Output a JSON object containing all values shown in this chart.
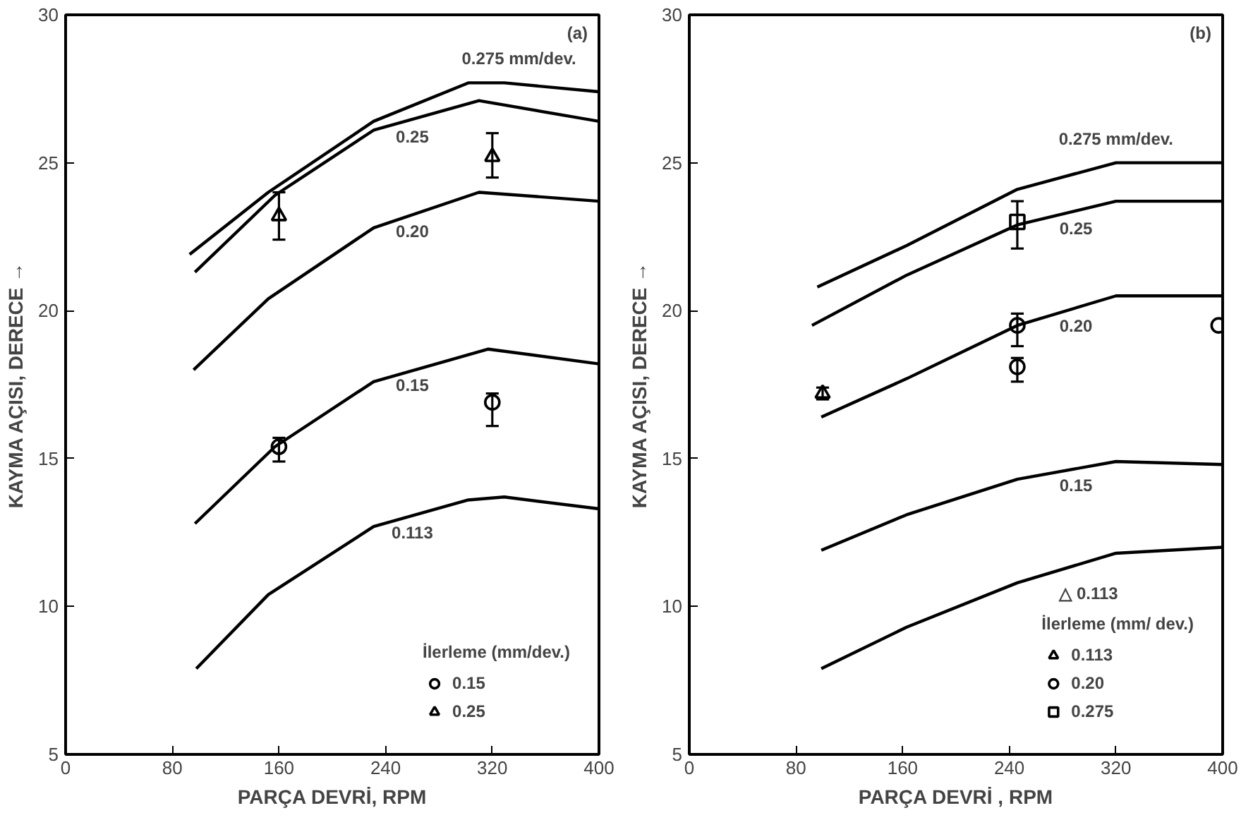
{
  "chart_data": [
    {
      "type": "line",
      "title": "(a)",
      "xlabel": "PARÇA DEVRİ, RPM",
      "ylabel": "KAYMA AÇISI, DERECE →",
      "legend_title": "İlerleme (mm/dev.)",
      "legend": "bottom right",
      "grid": false,
      "line_style": "solid",
      "xlim": [
        0,
        400
      ],
      "xticks": [
        0,
        80,
        160,
        240,
        320,
        400
      ],
      "ylim": [
        5,
        30
      ],
      "yticks": [
        5,
        10,
        15,
        20,
        25,
        30
      ],
      "annotations": [
        {
          "text": "0.275 mm/dev.",
          "x": 340,
          "y": 27.7
        },
        {
          "text": "0.25",
          "x": 260,
          "y": 26.5
        },
        {
          "text": "0.20",
          "x": 260,
          "y": 23.3
        },
        {
          "text": "0.15",
          "x": 260,
          "y": 18.1
        },
        {
          "text": "0.113",
          "x": 260,
          "y": 13.1
        }
      ],
      "series": [
        {
          "color": "#000000",
          "x": [
            93,
            152,
            231,
            302,
            329,
            400
          ],
          "values": [
            21.9,
            24.0,
            26.4,
            27.7,
            27.7,
            27.4
          ]
        },
        {
          "color": "#000000",
          "x": [
            97,
            157,
            231,
            310,
            400
          ],
          "values": [
            21.3,
            23.9,
            26.1,
            27.1,
            26.4
          ]
        },
        {
          "color": "#000000",
          "x": [
            96,
            152,
            231,
            310,
            400
          ],
          "values": [
            18.0,
            20.4,
            22.8,
            24.0,
            23.7
          ]
        },
        {
          "color": "#000000",
          "x": [
            97,
            157,
            231,
            317,
            400
          ],
          "values": [
            12.8,
            15.4,
            17.6,
            18.7,
            18.2
          ]
        },
        {
          "color": "#000000",
          "x": [
            98,
            152,
            231,
            302,
            329,
            400
          ],
          "values": [
            7.9,
            10.4,
            12.7,
            13.6,
            13.7,
            13.3
          ]
        },
        {
          "name": "0.15",
          "type": "scatter",
          "marker": "circle",
          "color": "#000000",
          "x": [
            160,
            320
          ],
          "values": [
            15.4,
            16.9
          ],
          "errors": [
            [
              14.9,
              15.7
            ],
            [
              16.1,
              17.2
            ]
          ]
        },
        {
          "name": "0.25",
          "type": "scatter",
          "marker": "triangle",
          "color": "#000000",
          "x": [
            160,
            320
          ],
          "values": [
            23.2,
            25.2
          ],
          "errors": [
            [
              22.4,
              24.0
            ],
            [
              24.5,
              26.0
            ]
          ]
        }
      ]
    },
    {
      "type": "line",
      "title": "(b)",
      "xlabel": "PARÇA DEVRİ , RPM",
      "ylabel": "KAYMA AÇISI, DERECE →",
      "legend_title": "İlerleme (mm/ dev.)",
      "legend": "bottom right",
      "grid": false,
      "line_style": "solid",
      "xlim": [
        0,
        400
      ],
      "xticks": [
        0,
        80,
        160,
        240,
        320,
        400
      ],
      "ylim": [
        5,
        30
      ],
      "yticks": [
        5,
        10,
        15,
        20,
        25,
        30
      ],
      "annotations": [
        {
          "text": "0.275 mm/dev.",
          "x": 320,
          "y": 25.0
        },
        {
          "text": "0.25",
          "x": 290,
          "y": 23.4
        },
        {
          "text": "0.20",
          "x": 290,
          "y": 20.1
        },
        {
          "text": "0.15",
          "x": 290,
          "y": 14.7
        },
        "△ 0.113"
      ],
      "series": [
        {
          "color": "#000000",
          "x": [
            96,
            163,
            246,
            320,
            400
          ],
          "values": [
            20.8,
            22.2,
            24.1,
            25.0,
            25.0
          ]
        },
        {
          "color": "#000000",
          "x": [
            92,
            163,
            246,
            320,
            400
          ],
          "values": [
            19.5,
            21.2,
            22.9,
            23.7,
            23.7
          ]
        },
        {
          "color": "#000000",
          "x": [
            99,
            163,
            246,
            320,
            400
          ],
          "values": [
            16.4,
            17.7,
            19.5,
            20.5,
            20.5
          ]
        },
        {
          "color": "#000000",
          "x": [
            99,
            163,
            246,
            320,
            400
          ],
          "values": [
            11.9,
            13.1,
            14.3,
            14.9,
            14.8
          ]
        },
        {
          "color": "#000000",
          "x": [
            99,
            163,
            246,
            320,
            400
          ],
          "values": [
            7.9,
            9.3,
            10.8,
            11.8,
            12.0
          ]
        },
        {
          "name": "0.113",
          "type": "scatter",
          "marker": "triangle",
          "color": "#000000",
          "x": [
            100
          ],
          "values": [
            17.2
          ],
          "errors": [
            [
              17.0,
              17.4
            ]
          ]
        },
        {
          "name": "0.20",
          "type": "scatter",
          "marker": "circle",
          "color": "#000000",
          "x": [
            246,
            246,
            397
          ],
          "values": [
            19.5,
            18.1,
            19.5
          ],
          "errors": [
            [
              18.8,
              19.9
            ],
            [
              17.6,
              18.4
            ],
            null
          ]
        },
        {
          "name": "0.275",
          "type": "scatter",
          "marker": "square",
          "color": "#000000",
          "x": [
            246
          ],
          "values": [
            23.0
          ],
          "errors": [
            [
              22.1,
              23.7
            ]
          ]
        }
      ]
    }
  ]
}
